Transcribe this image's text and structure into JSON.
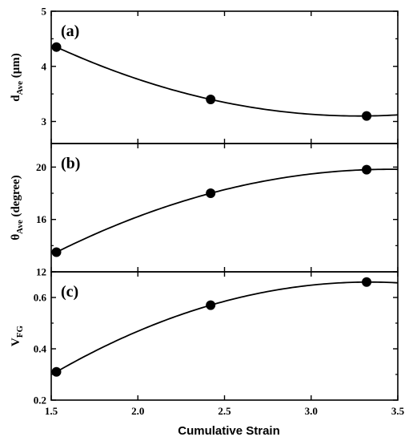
{
  "chart_data": [
    {
      "type": "scatter",
      "panel_label": "(a)",
      "ylabel_main": "d",
      "ylabel_sub": "Ave",
      "ylabel_unit": " (μm)",
      "x": [
        1.53,
        2.42,
        3.32
      ],
      "y": [
        4.35,
        3.4,
        3.1
      ],
      "fit": "quadratic",
      "xlim": [
        1.5,
        3.5
      ],
      "ylim": [
        2.6,
        5.0
      ],
      "yticks": [
        "3",
        "4",
        "5"
      ],
      "grid": false
    },
    {
      "type": "scatter",
      "panel_label": "(b)",
      "ylabel_main": "θ",
      "ylabel_sub": "Ave",
      "ylabel_unit": " (degree)",
      "x": [
        1.53,
        2.42,
        3.32
      ],
      "y": [
        13.5,
        18.0,
        19.8
      ],
      "fit": "quadratic",
      "xlim": [
        1.5,
        3.5
      ],
      "ylim": [
        12.0,
        21.8
      ],
      "yticks": [
        "12",
        "16",
        "20"
      ],
      "grid": false
    },
    {
      "type": "scatter",
      "panel_label": "(c)",
      "ylabel_main": "V",
      "ylabel_sub": "FG",
      "ylabel_unit": "",
      "x": [
        1.53,
        2.42,
        3.32
      ],
      "y": [
        0.31,
        0.57,
        0.66
      ],
      "fit": "quadratic",
      "xlim": [
        1.5,
        3.5
      ],
      "ylim": [
        0.2,
        0.7
      ],
      "yticks": [
        "0.2",
        "0.4",
        "0.6"
      ],
      "grid": false
    }
  ],
  "xaxis": {
    "label": "Cumulative  Strain",
    "ticks": [
      "1.5",
      "2.0",
      "2.5",
      "3.0",
      "3.5"
    ]
  },
  "colors": {
    "line": "#000000",
    "marker": "#000000",
    "background": "#ffffff"
  }
}
